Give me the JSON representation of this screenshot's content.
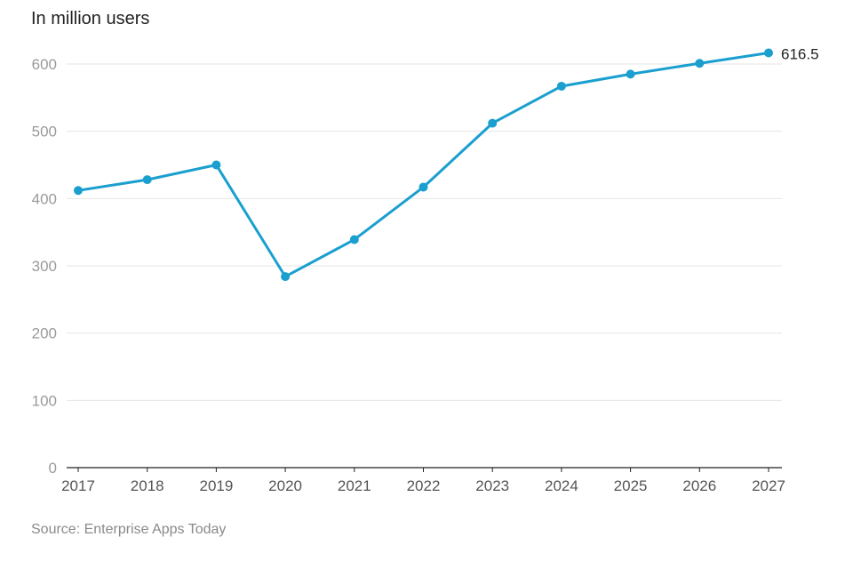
{
  "chart_data": {
    "type": "line",
    "ylabel": "In million users",
    "source": "Source: Enterprise Apps Today",
    "categories": [
      "2017",
      "2018",
      "2019",
      "2020",
      "2021",
      "2022",
      "2023",
      "2024",
      "2025",
      "2026",
      "2027"
    ],
    "series": [
      {
        "values": [
          412,
          428,
          450,
          284,
          339,
          417,
          512,
          567,
          585,
          601,
          616.5
        ]
      }
    ],
    "ylim": [
      0,
      600
    ],
    "yticks": [
      "0",
      "100",
      "200",
      "300",
      "400",
      "500",
      "600"
    ],
    "annotations": [
      {
        "index": 10,
        "text": "616.5"
      }
    ],
    "grid": true,
    "color": "#1a9fcf"
  }
}
